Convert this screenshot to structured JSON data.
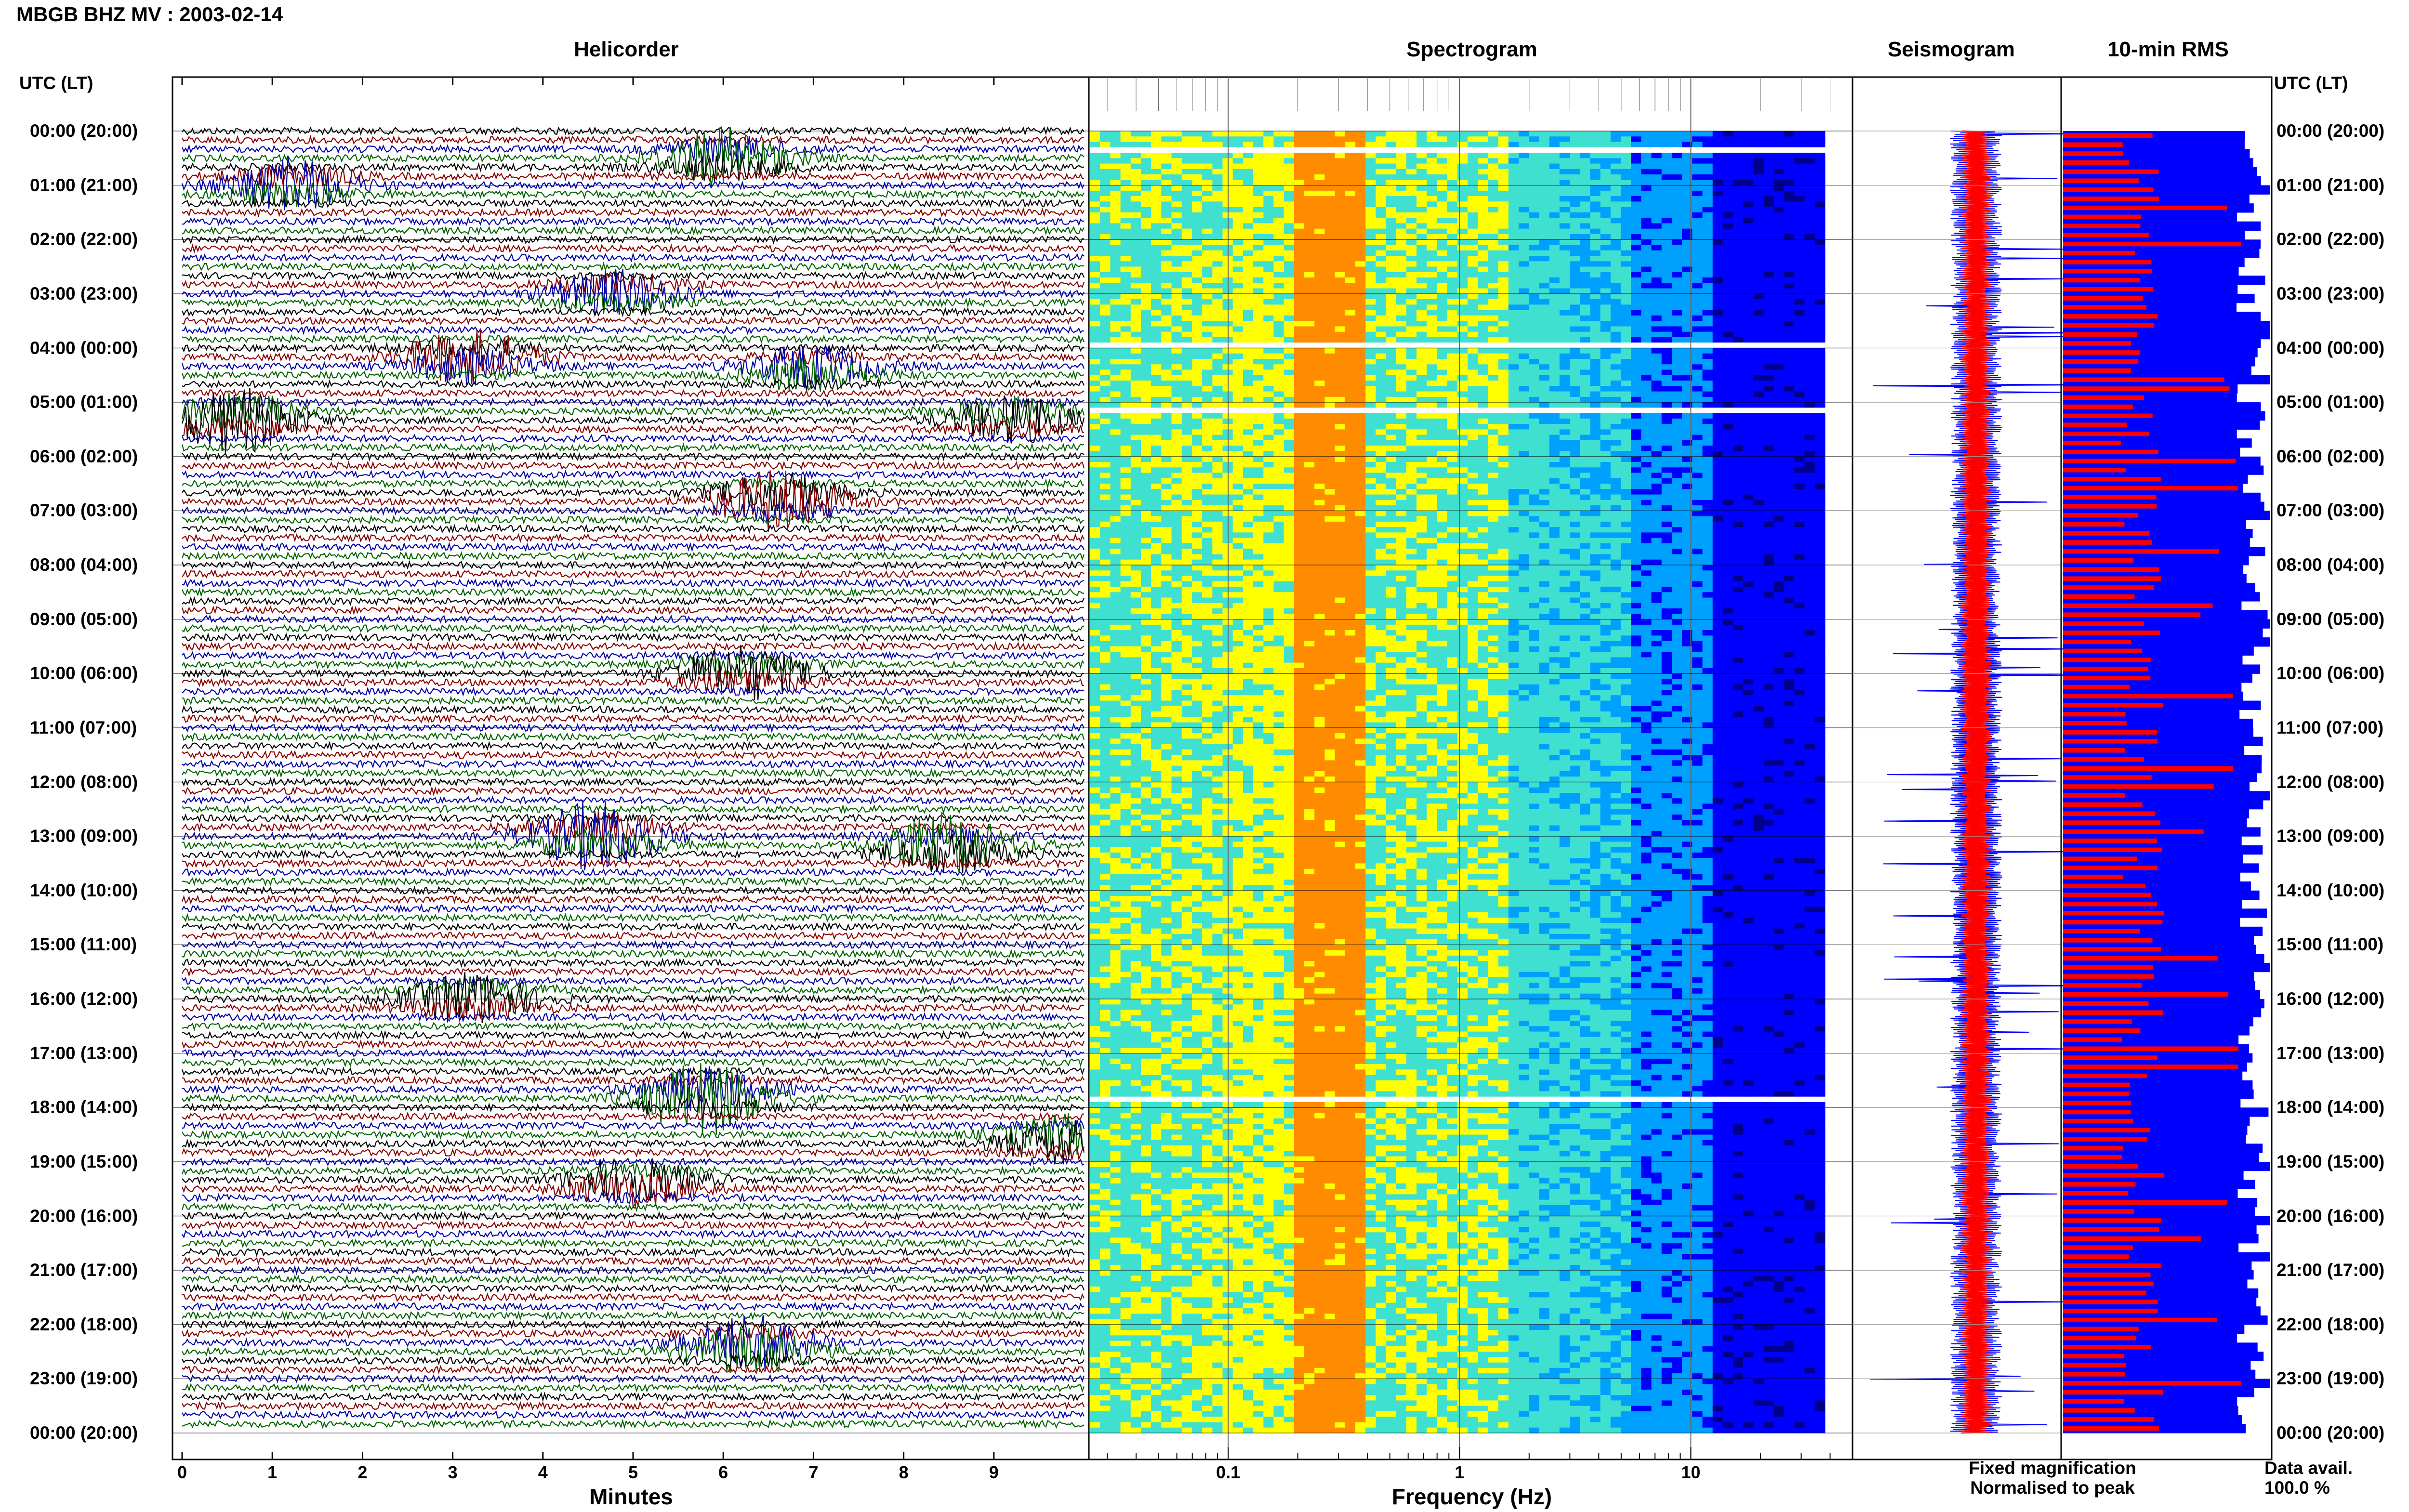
{
  "header": {
    "title": "MBGB BHZ MV : 2003-02-14"
  },
  "panels": {
    "helicorder": "Helicorder",
    "spectrogram": "Spectrogram",
    "seismogram": "Seismogram",
    "rms": "10-min RMS"
  },
  "axis_header": {
    "left": "UTC (LT)",
    "right": "UTC (LT)"
  },
  "time_labels": [
    "00:00 (20:00)",
    "01:00 (21:00)",
    "02:00 (22:00)",
    "03:00 (23:00)",
    "04:00 (00:00)",
    "05:00 (01:00)",
    "06:00 (02:00)",
    "07:00 (03:00)",
    "08:00 (04:00)",
    "09:00 (05:00)",
    "10:00 (06:00)",
    "11:00 (07:00)",
    "12:00 (08:00)",
    "13:00 (09:00)",
    "14:00 (10:00)",
    "15:00 (11:00)",
    "16:00 (12:00)",
    "17:00 (13:00)",
    "18:00 (14:00)",
    "19:00 (15:00)",
    "20:00 (16:00)",
    "21:00 (17:00)",
    "22:00 (18:00)",
    "23:00 (19:00)",
    "00:00 (20:00)"
  ],
  "helicorder_axis": {
    "ticks": [
      "0",
      "1",
      "2",
      "3",
      "4",
      "5",
      "6",
      "7",
      "8",
      "9"
    ],
    "label": "Minutes"
  },
  "spectrogram_axis": {
    "ticks": [
      "0.1",
      "1",
      "10"
    ],
    "label": "Frequency (Hz)",
    "scale": "log"
  },
  "legend": {
    "fixed": "Fixed magnification",
    "normalised": "Normalised to peak",
    "fixed_color": "#0000ff",
    "normalised_color": "#ff0000"
  },
  "availability": {
    "label": "Data avail.",
    "value": "100.0 %"
  },
  "chart_data": [
    {
      "type": "line",
      "panel": "Helicorder",
      "xlabel": "Minutes",
      "xlim": [
        0,
        10
      ],
      "trace_colors": [
        "#000000",
        "#8b0000",
        "#0000aa",
        "#006400"
      ],
      "events_minutes": [
        {
          "hour": 0.5,
          "minute": 6.0,
          "amp": 1.6
        },
        {
          "hour": 1.0,
          "minute": 1.2,
          "amp": 1.4
        },
        {
          "hour": 3.0,
          "minute": 4.8,
          "amp": 1.2
        },
        {
          "hour": 4.2,
          "minute": 3.2,
          "amp": 1.5
        },
        {
          "hour": 4.4,
          "minute": 7.0,
          "amp": 1.3
        },
        {
          "hour": 5.3,
          "minute": 0.6,
          "amp": 1.8
        },
        {
          "hour": 5.3,
          "minute": 9.2,
          "amp": 1.3
        },
        {
          "hour": 6.8,
          "minute": 6.6,
          "amp": 1.7
        },
        {
          "hour": 10.0,
          "minute": 6.2,
          "amp": 1.5
        },
        {
          "hour": 13.0,
          "minute": 4.6,
          "amp": 1.9
        },
        {
          "hour": 13.2,
          "minute": 8.5,
          "amp": 1.7
        },
        {
          "hour": 16.0,
          "minute": 3.2,
          "amp": 1.4
        },
        {
          "hour": 17.8,
          "minute": 5.8,
          "amp": 2.0
        },
        {
          "hour": 18.6,
          "minute": 9.8,
          "amp": 1.4
        },
        {
          "hour": 19.4,
          "minute": 5.0,
          "amp": 1.3
        },
        {
          "hour": 22.4,
          "minute": 6.3,
          "amp": 1.7
        }
      ]
    },
    {
      "type": "heatmap",
      "panel": "Spectrogram",
      "xlabel": "Frequency (Hz)",
      "xscale": "log",
      "xlim": [
        0.025,
        50
      ],
      "peak_band_hz": [
        0.2,
        0.35
      ],
      "colormap": [
        "#00008b",
        "#0000ff",
        "#00a0ff",
        "#40e0d0",
        "#ffff00",
        "#ff8c00",
        "#ff0000"
      ],
      "gap_hours": [
        0.3,
        3.9,
        5.1,
        17.8
      ]
    },
    {
      "type": "line",
      "panel": "Seismogram",
      "series": [
        {
          "name": "Fixed magnification",
          "color": "#0000ff"
        },
        {
          "name": "Normalised to peak",
          "color": "#ff0000"
        }
      ]
    },
    {
      "type": "bar",
      "panel": "10-min RMS",
      "series": [
        {
          "name": "Fixed magnification",
          "color": "#0000ff"
        },
        {
          "name": "Normalised to peak",
          "color": "#ff0000"
        }
      ]
    }
  ]
}
